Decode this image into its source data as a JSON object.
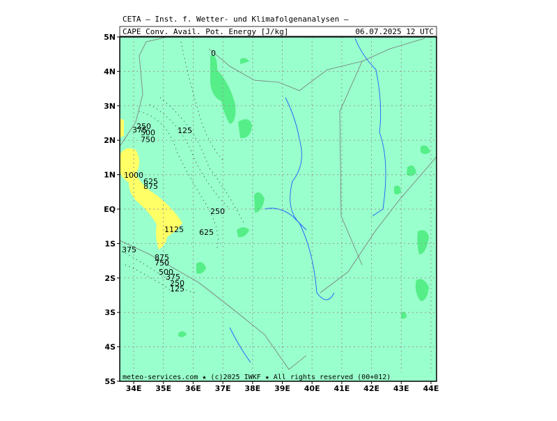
{
  "header": {
    "institute": "CETA — Inst. f. Wetter- und Klimafolgenanalysen —",
    "title": "CAPE Conv. Avail. Pot. Energy [J/kg]",
    "time": "06.07.2025 12 UTC"
  },
  "axes": {
    "lat_labels": [
      "5N",
      "4N",
      "3N",
      "2N",
      "1N",
      "EQ",
      "1S",
      "2S",
      "3S",
      "4S",
      "5S"
    ],
    "lon_labels": [
      "34E",
      "35E",
      "36E",
      "37E",
      "38E",
      "39E",
      "40E",
      "41E",
      "42E",
      "43E",
      "44E"
    ]
  },
  "contour_labels": [
    "0",
    "250",
    "375",
    "500",
    "750",
    "125",
    "1000",
    "625",
    "875",
    "250",
    "1125",
    "625",
    "375",
    "875",
    "750",
    "500",
    "375",
    "250",
    "125"
  ],
  "footer": "meteo-services.com ★ (c)2025 IWKF ★ All rights reserved (00+012)"
}
